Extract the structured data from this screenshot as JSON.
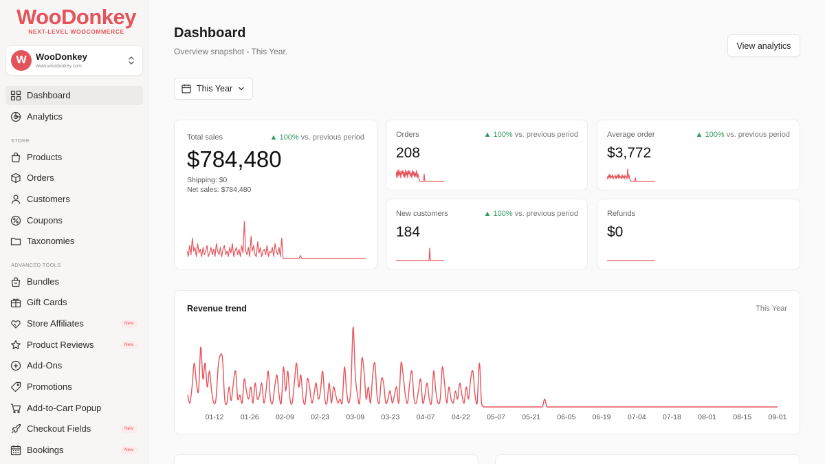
{
  "brand": {
    "wordmark": "WooDonkey",
    "tagline": "NEXT-LEVEL WOOCOMMERCE",
    "accent": "#e5535a"
  },
  "store": {
    "avatar_letter": "W",
    "name": "WooDonkey",
    "url": "www.woodonkey.com"
  },
  "nav": {
    "primary": [
      {
        "label": "Dashboard",
        "icon": "grid-icon",
        "active": true
      },
      {
        "label": "Analytics",
        "icon": "analytics-icon"
      }
    ],
    "store_heading": "STORE",
    "store": [
      {
        "label": "Products",
        "icon": "bag-icon"
      },
      {
        "label": "Orders",
        "icon": "box-icon"
      },
      {
        "label": "Customers",
        "icon": "user-icon"
      },
      {
        "label": "Coupons",
        "icon": "coupon-icon"
      },
      {
        "label": "Taxonomies",
        "icon": "folder-icon"
      }
    ],
    "tools_heading": "ADVANCED TOOLS",
    "tools": [
      {
        "label": "Bundles",
        "icon": "bundle-icon"
      },
      {
        "label": "Gift Cards",
        "icon": "gift-icon"
      },
      {
        "label": "Store Affiliates",
        "icon": "handshake-icon",
        "badge": "New"
      },
      {
        "label": "Product Reviews",
        "icon": "star-icon",
        "badge": "New"
      },
      {
        "label": "Add-Ons",
        "icon": "plus-circle-icon"
      },
      {
        "label": "Promotions",
        "icon": "tag-icon"
      },
      {
        "label": "Add-to-Cart Popup",
        "icon": "cart-icon"
      },
      {
        "label": "Checkout Fields",
        "icon": "rocket-icon",
        "badge": "New"
      },
      {
        "label": "Bookings",
        "icon": "calendar-icon",
        "badge": "New"
      }
    ]
  },
  "header": {
    "title": "Dashboard",
    "subtitle": "Overview snapshot - This Year.",
    "analytics_button": "View analytics"
  },
  "period_selector": {
    "label": "This Year"
  },
  "metrics": {
    "total_sales": {
      "label": "Total sales",
      "value": "$784,480",
      "trend_pct": "100%",
      "trend_text": "vs. previous period",
      "shipping": "Shipping: $0",
      "net_sales": "Net sales: $784,480"
    },
    "orders": {
      "label": "Orders",
      "value": "208",
      "trend_pct": "100%",
      "trend_text": "vs. previous period"
    },
    "average_order": {
      "label": "Average order",
      "value": "$3,772",
      "trend_pct": "100%",
      "trend_text": "vs. previous period"
    },
    "new_customers": {
      "label": "New customers",
      "value": "184",
      "trend_pct": "100%",
      "trend_text": "vs. previous period"
    },
    "refunds": {
      "label": "Refunds",
      "value": "$0"
    }
  },
  "revenue_trend": {
    "title": "Revenue trend",
    "period": "This Year"
  },
  "chart_data": {
    "type": "line",
    "title": "Revenue trend",
    "xlabel": "",
    "ylabel": "",
    "x_ticks": [
      "01-12",
      "01-26",
      "02-09",
      "02-23",
      "03-09",
      "03-23",
      "04-07",
      "04-22",
      "05-07",
      "05-21",
      "06-05",
      "06-19",
      "07-04",
      "07-18",
      "08-01",
      "08-15",
      "09-01"
    ],
    "values": [
      0.15,
      0.05,
      0.25,
      0.55,
      0.3,
      0.2,
      0.75,
      0.35,
      0.55,
      0.25,
      0.45,
      0.2,
      0.05,
      0.1,
      0.5,
      0.65,
      0.6,
      0.1,
      0.05,
      0.25,
      0.08,
      0.3,
      0.45,
      0.1,
      0.15,
      0.05,
      0.35,
      0.2,
      0.1,
      0.25,
      0.05,
      0.3,
      0.1,
      0.15,
      0.3,
      0.05,
      0.2,
      0.45,
      0.1,
      0.05,
      0.25,
      0.4,
      0.15,
      0.05,
      0.5,
      0.2,
      0.45,
      0.1,
      0.05,
      0.3,
      0.55,
      0.25,
      0.4,
      0.1,
      0.05,
      0.35,
      0.25,
      0.05,
      0.15,
      0.3,
      0.1,
      0.2,
      0.45,
      0.1,
      0.05,
      0.3,
      0.05,
      0.25,
      0.15,
      0.05,
      0.1,
      0.05,
      0.5,
      0.2,
      0.05,
      0.25,
      1.0,
      0.4,
      0.15,
      0.05,
      0.6,
      0.45,
      0.1,
      0.25,
      0.05,
      0.4,
      0.55,
      0.15,
      0.05,
      0.35,
      0.3,
      0.05,
      0.1,
      0.2,
      0.05,
      0.15,
      0.25,
      0.05,
      0.55,
      0.4,
      0.15,
      0.05,
      0.3,
      0.45,
      0.1,
      0.05,
      0.2,
      0.35,
      0.05,
      0.15,
      0.3,
      0.1,
      0.05,
      0.45,
      0.2,
      0.05,
      0.1,
      0.5,
      0.3,
      0.05,
      0.25,
      0.1,
      0.05,
      0.2,
      0.1,
      0.3,
      0.15,
      0.05,
      0.25,
      0.1,
      0.35,
      0.45,
      0.15,
      0.05,
      0.55,
      0.05,
      0,
      0,
      0,
      0,
      0,
      0,
      0,
      0,
      0,
      0,
      0,
      0,
      0,
      0,
      0,
      0,
      0,
      0,
      0,
      0,
      0,
      0,
      0,
      0,
      0,
      0,
      0,
      0,
      0.1,
      0,
      0,
      0,
      0,
      0,
      0,
      0,
      0,
      0,
      0,
      0,
      0,
      0,
      0,
      0,
      0,
      0,
      0,
      0,
      0,
      0,
      0,
      0,
      0,
      0,
      0,
      0,
      0,
      0,
      0,
      0,
      0,
      0,
      0,
      0,
      0,
      0,
      0,
      0,
      0,
      0,
      0,
      0,
      0,
      0,
      0,
      0,
      0,
      0,
      0,
      0,
      0,
      0,
      0,
      0,
      0,
      0,
      0,
      0,
      0,
      0,
      0,
      0,
      0,
      0,
      0,
      0,
      0,
      0,
      0,
      0,
      0,
      0,
      0,
      0,
      0,
      0,
      0,
      0,
      0,
      0,
      0,
      0,
      0,
      0,
      0,
      0,
      0,
      0,
      0,
      0,
      0,
      0,
      0,
      0,
      0,
      0,
      0,
      0,
      0,
      0,
      0,
      0,
      0,
      0,
      0,
      0
    ],
    "color": "#e5535a"
  },
  "sparklines": {
    "total_sales": [
      0.2,
      0.05,
      0.35,
      0.1,
      0.55,
      0.2,
      0.3,
      0.05,
      0.4,
      0.15,
      0.25,
      0.05,
      0.3,
      0.1,
      0.2,
      0.35,
      0.05,
      0.15,
      0.3,
      0.1,
      0.25,
      0.05,
      0.4,
      0.2,
      0.1,
      0.3,
      0.05,
      0.25,
      0.35,
      0.1,
      0.2,
      0.05,
      0.3,
      0.15,
      0.4,
      0.05,
      0.2,
      0.3,
      0.1,
      0.25,
      0.05,
      0.35,
      0.15,
      1.0,
      0.2,
      0.1,
      0.3,
      0.05,
      0.6,
      0.2,
      0.35,
      0.1,
      0.05,
      0.45,
      0.15,
      0.3,
      0.05,
      0.2,
      0.25,
      0.1,
      0.35,
      0.05,
      0.2,
      0.15,
      0.3,
      0.05,
      0.4,
      0.2,
      0.1,
      0.3,
      0.05,
      0.55,
      0,
      0,
      0,
      0,
      0,
      0,
      0,
      0,
      0,
      0,
      0,
      0,
      0,
      0.08,
      0,
      0,
      0,
      0,
      0,
      0,
      0,
      0,
      0,
      0,
      0,
      0,
      0,
      0,
      0,
      0,
      0,
      0,
      0,
      0,
      0,
      0,
      0,
      0,
      0,
      0,
      0,
      0,
      0,
      0,
      0,
      0,
      0,
      0,
      0,
      0,
      0,
      0,
      0,
      0,
      0,
      0,
      0,
      0,
      0,
      0,
      0,
      0,
      0
    ],
    "orders": [
      0.8,
      0.3,
      0.9,
      0.4,
      0.95,
      0.5,
      0.8,
      0.3,
      0.85,
      0.6,
      0.9,
      0.4,
      0.75,
      0.3,
      0.95,
      0.5,
      0.8,
      0.3,
      0.9,
      0.6,
      0.85,
      0.4,
      0.7,
      0.3,
      0.9,
      0.5,
      0.8,
      0.35,
      0.7,
      0.4,
      0.9,
      0.3,
      0.6,
      0.3,
      0.1,
      0,
      0,
      0,
      0,
      0,
      0.05,
      0.6,
      0,
      0,
      0,
      0,
      0,
      0,
      0,
      0,
      0,
      0,
      0,
      0,
      0,
      0,
      0,
      0,
      0,
      0,
      0,
      0,
      0,
      0,
      0,
      0,
      0,
      0,
      0,
      0,
      0
    ],
    "average_order": [
      0.4,
      0.2,
      0.5,
      0.3,
      0.6,
      0.25,
      0.45,
      0.3,
      0.55,
      0.2,
      0.4,
      0.35,
      0.5,
      0.2,
      0.45,
      0.3,
      0.6,
      0.25,
      0.5,
      0.3,
      0.4,
      0.2,
      0.55,
      0.3,
      0.45,
      0.2,
      0.5,
      0.35,
      0.4,
      0.2,
      1.0,
      0.3,
      0.5,
      0.2,
      0.1,
      0,
      0,
      0,
      0,
      0,
      0,
      0.3,
      0,
      0,
      0,
      0,
      0,
      0,
      0,
      0,
      0,
      0,
      0,
      0,
      0,
      0,
      0,
      0,
      0,
      0,
      0,
      0,
      0,
      0,
      0,
      0,
      0,
      0,
      0,
      0,
      0
    ],
    "new_customers": [
      0,
      0,
      0,
      0,
      0,
      0,
      0,
      0,
      0,
      0,
      0,
      0,
      0,
      0,
      0,
      0,
      0,
      0,
      0,
      0,
      0,
      0,
      0,
      0,
      0,
      0,
      0,
      0,
      0,
      0,
      0,
      0,
      0,
      0,
      0,
      0,
      0,
      0,
      0,
      0,
      0,
      0,
      0,
      0,
      0,
      0,
      0,
      0,
      0,
      1.0,
      0,
      0,
      0,
      0,
      0,
      0,
      0,
      0,
      0,
      0,
      0,
      0,
      0,
      0,
      0,
      0,
      0,
      0,
      0,
      0,
      0
    ],
    "refunds": [
      0,
      0,
      0,
      0,
      0,
      0,
      0,
      0,
      0,
      0,
      0,
      0,
      0,
      0,
      0,
      0,
      0,
      0,
      0,
      0,
      0,
      0,
      0,
      0,
      0,
      0,
      0,
      0,
      0,
      0,
      0,
      0,
      0,
      0,
      0,
      0,
      0,
      0,
      0,
      0
    ]
  }
}
